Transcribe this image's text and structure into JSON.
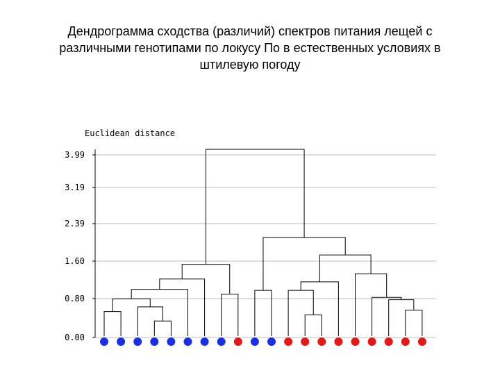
{
  "title_lines": [
    "Дендрограмма сходства (различий) спектров питания лещей с",
    "различными генотипами по локусу По в естественных условиях в",
    "штилевую погоду"
  ],
  "axis_label": "Euclidean distance",
  "colors": {
    "blue": "#1a2fe0",
    "red": "#e01a1a",
    "grid": "#bbbbbb",
    "line": "#000000"
  },
  "chart_data": {
    "type": "dendrogram",
    "ylabel": "Euclidean distance",
    "y_ticks": [
      "3.99",
      "3.19",
      "2.39",
      "1.60",
      "0.80",
      "0.00"
    ],
    "leaf_colors": [
      "blue",
      "blue",
      "blue",
      "blue",
      "blue",
      "blue",
      "blue",
      "blue",
      "red",
      "blue",
      "blue",
      "red",
      "red",
      "red",
      "red",
      "red",
      "red",
      "red",
      "red",
      "red"
    ],
    "links": [
      {
        "a": 0,
        "b": 1,
        "h": 0.55
      },
      {
        "a": 3,
        "b": 4,
        "h": 0.35
      },
      {
        "a": 2,
        "b": "l1",
        "h": 0.65
      },
      {
        "a": "l0",
        "b": "l2",
        "h": 0.82
      },
      {
        "a": "l3",
        "b": 5,
        "h": 1.02
      },
      {
        "a": "l4",
        "b": 6,
        "h": 1.24
      },
      {
        "a": 7,
        "b": 8,
        "h": 0.92
      },
      {
        "a": "l5",
        "b": "l6",
        "h": 1.55
      },
      {
        "a": 9,
        "b": 10,
        "h": 1.0
      },
      {
        "a": 12,
        "b": 13,
        "h": 0.48
      },
      {
        "a": 11,
        "b": "l9",
        "h": 1.0
      },
      {
        "a": "l10",
        "b": 14,
        "h": 1.18
      },
      {
        "a": 18,
        "b": 19,
        "h": 0.58
      },
      {
        "a": 17,
        "b": "l12",
        "h": 0.8
      },
      {
        "a": 16,
        "b": "l13",
        "h": 0.85
      },
      {
        "a": 15,
        "b": "l14",
        "h": 1.35
      },
      {
        "a": "l11",
        "b": "l15",
        "h": 1.75
      },
      {
        "a": "l8",
        "b": "l16",
        "h": 2.12
      },
      {
        "a": "l7",
        "b": "l17",
        "h": 3.99
      }
    ]
  }
}
